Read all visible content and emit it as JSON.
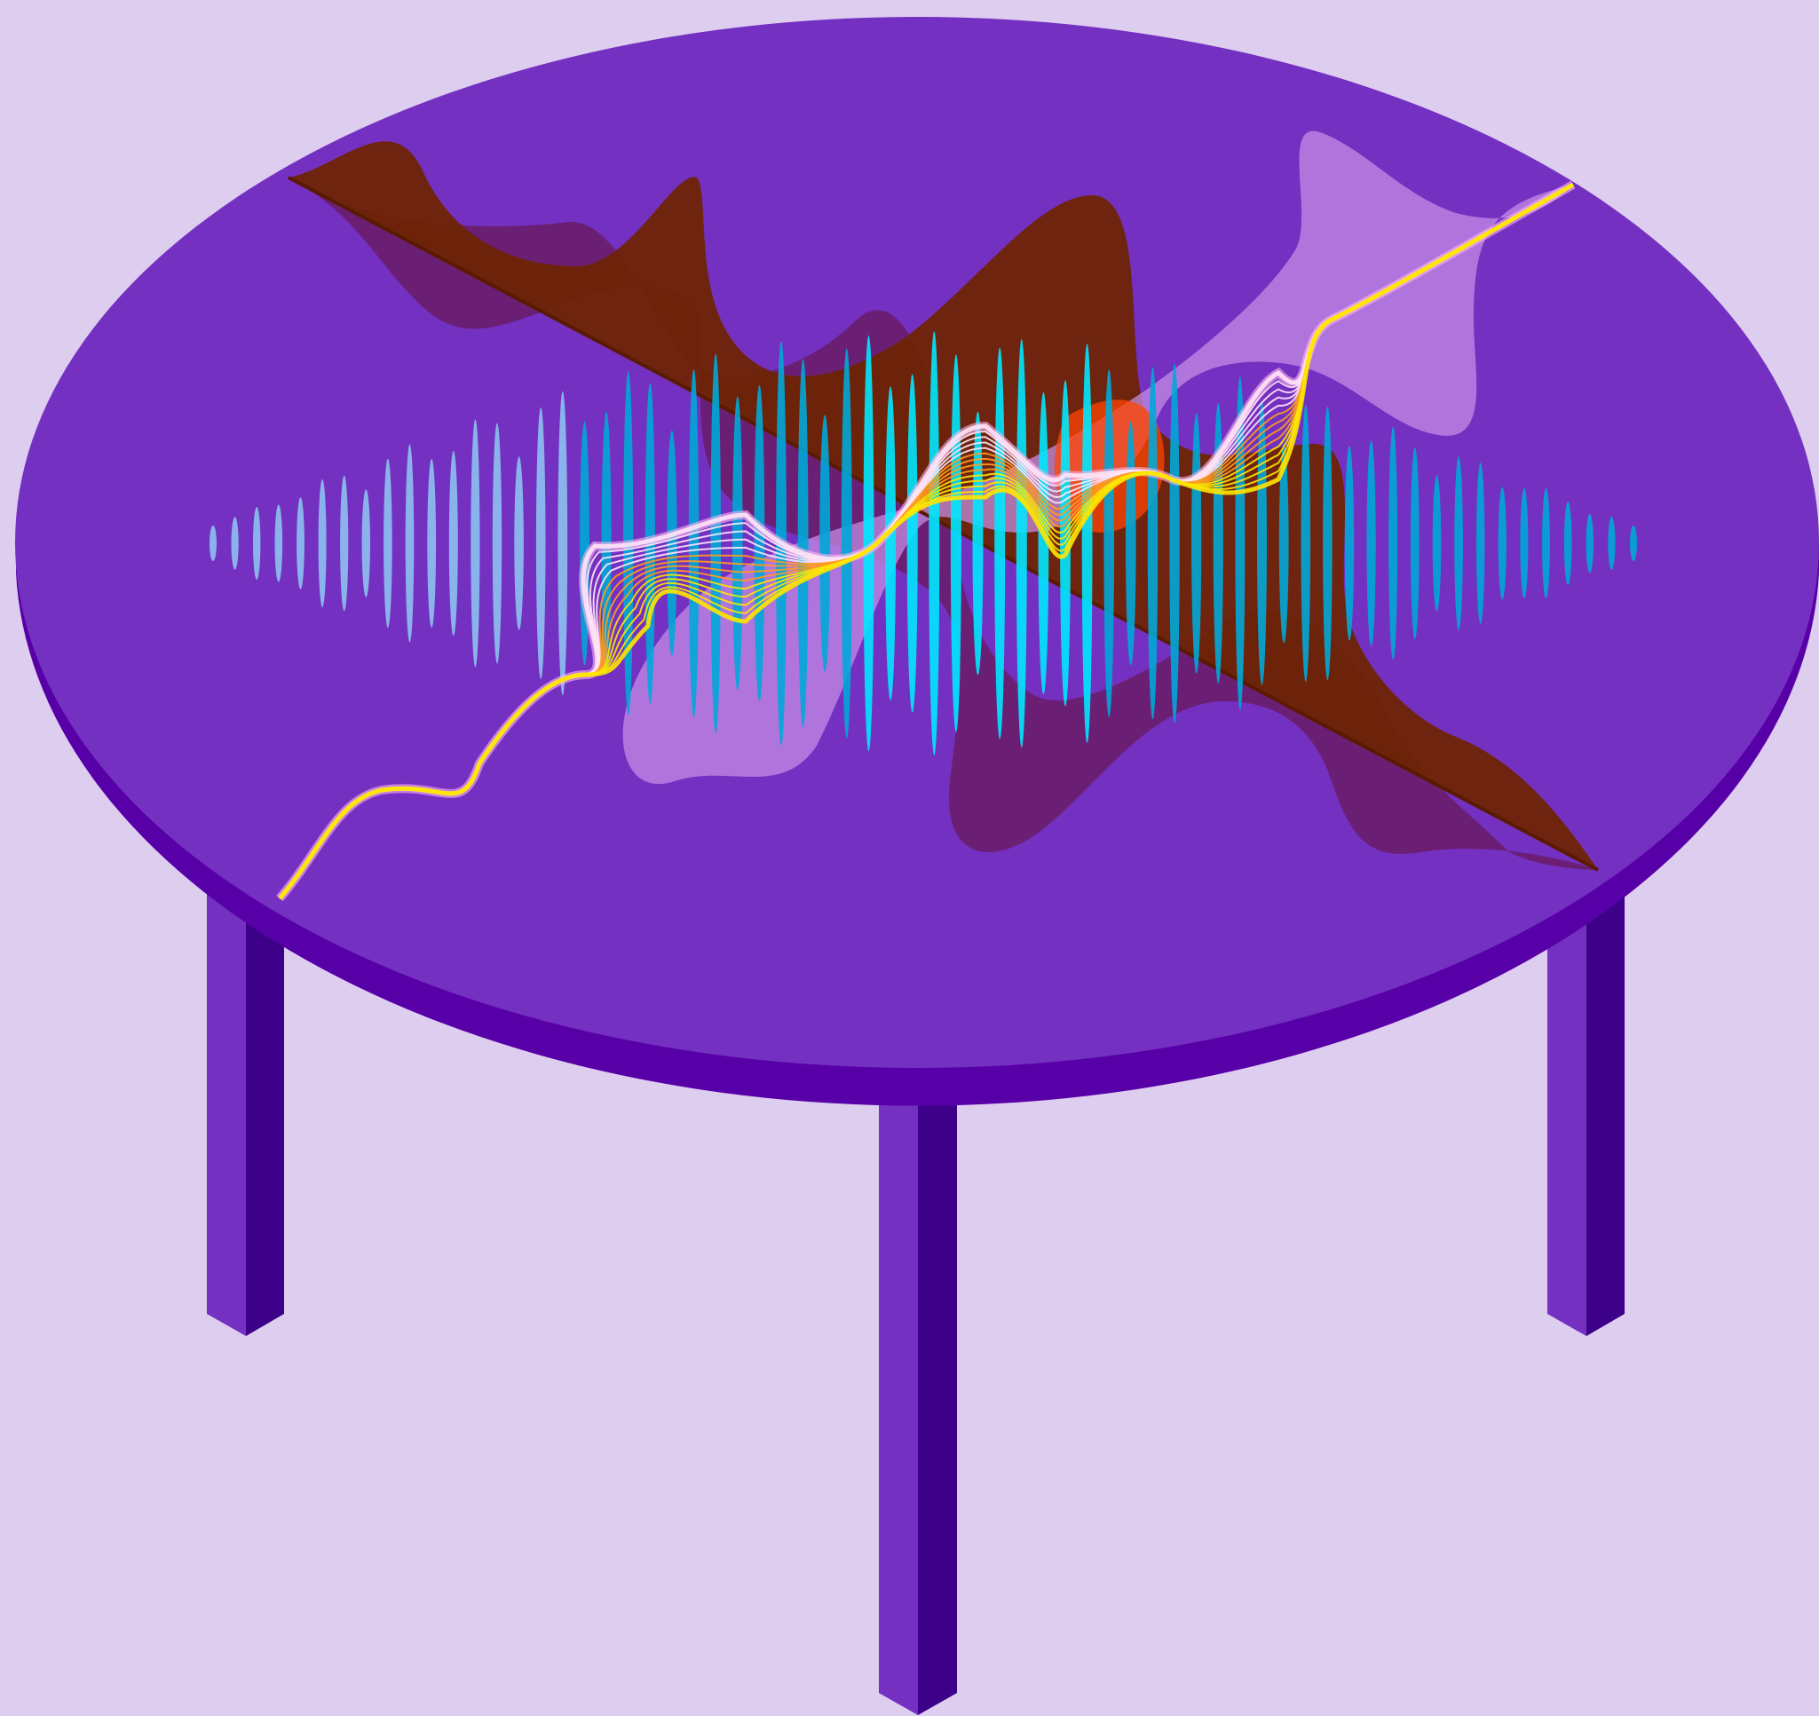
{
  "scene": {
    "subject": "table",
    "colors": {
      "background": "#ddcdef",
      "table_top": "#7430c1",
      "table_rim": "#5800a8",
      "leg_front": "#7430c1",
      "leg_side": "#3d0088",
      "wave_brown": "#6e2400",
      "wave_plum": "#6a1c66",
      "wave_lilac": "#c890e8",
      "ribbon_pink": "#ffb4f0",
      "ribbon_line": "#ffe4f6",
      "ribbon_orange": "#ff9c20",
      "ribbon_yellow": "#ffe600",
      "core_red": "#ff4400",
      "bars_blue": "#8cc2ee",
      "bars_teal": "#00a8d8",
      "bars_cyan": "#00e8ff"
    },
    "decorations": {
      "bar_count": 66,
      "ribbon_lines": 14,
      "legs": [
        "leg-left",
        "leg-center",
        "leg-right"
      ]
    }
  }
}
